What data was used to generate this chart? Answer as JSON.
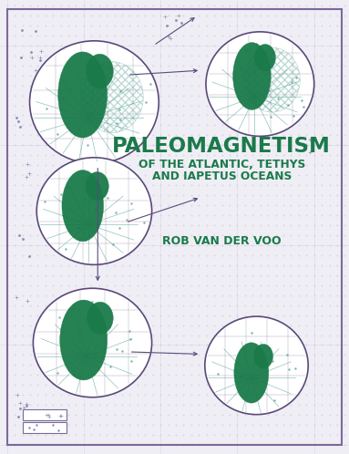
{
  "title_line1": "PALEOMAGNETISM",
  "title_line2": "OF THE ATLANTIC, TETHYS",
  "title_line3": "AND IAPETUS OCEANS",
  "author": "ROB VAN DER VOO",
  "bg_color": "#f0eef5",
  "grid_color": "#d0c8e0",
  "border_color": "#7a6a9a",
  "title_color": "#1a7a4a",
  "globe_border_color": "#5a4a7a",
  "continent_color": "#1a7a4a",
  "scatter_color": "#5a6a9a",
  "arrow_color": "#5a4a7a",
  "line_color": "#4a9a8a",
  "hatch_color": "#4a9a8a"
}
